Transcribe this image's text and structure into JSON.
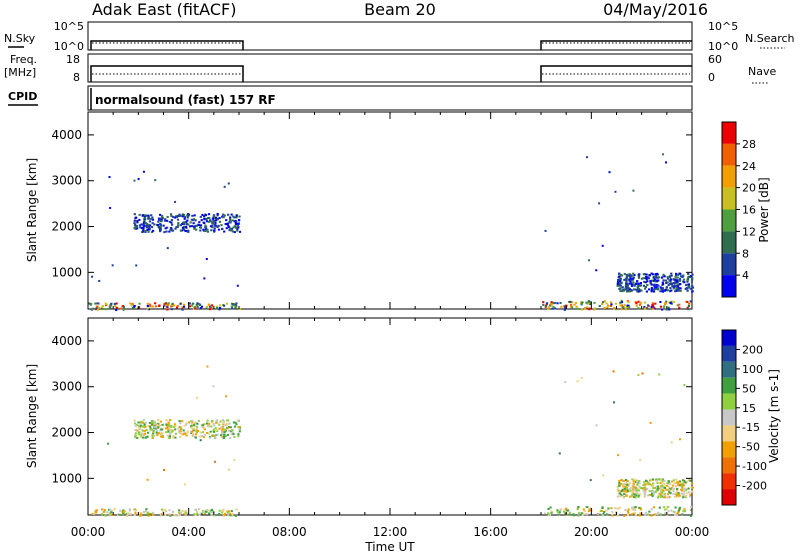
{
  "header": {
    "station": "Adak East (fitACF)",
    "beam": "Beam 20",
    "date": "04/May/2016"
  },
  "labels": {
    "nsky": "N.Sky",
    "nsearch": "N.Search",
    "freq": "Freq.",
    "freq_unit": "[MHz]",
    "nave": "Nave",
    "cpid": "CPID",
    "cpid_value": "normalsound (fast) 157 RF"
  },
  "strip_ticks": {
    "nsky_left": [
      "10^5",
      "10^0"
    ],
    "nsearch_right": [
      "10^5",
      "10^0"
    ],
    "freq_left": [
      "18",
      "8"
    ],
    "nave_right": [
      "60",
      "0"
    ]
  },
  "colors": {
    "power": [
      "#0000ee",
      "#1f3f9f",
      "#2f6f4f",
      "#4f9f3f",
      "#c8c020",
      "#f0a000",
      "#f06000",
      "#ee0000"
    ],
    "velocity": [
      "#e00000",
      "#f03000",
      "#f07000",
      "#f0a000",
      "#f0d080",
      "#c8c8c8",
      "#90d040",
      "#40a040",
      "#2f6f7f",
      "#1f3f9f",
      "#0000d0"
    ]
  },
  "chart_data": [
    {
      "type": "heatmap",
      "quantity": "Power",
      "ylabel": "Slant Range [km]",
      "colorbar_label": "Power [dB]",
      "colorbar_ticks": [
        "28",
        "24",
        "20",
        "16",
        "12",
        "8",
        "4"
      ],
      "xlim": [
        0,
        24
      ],
      "ylim": [
        200,
        4500
      ],
      "yticks": [
        1000,
        2000,
        3000,
        4000
      ],
      "xticks": [
        "00:00",
        "04:00",
        "08:00",
        "12:00",
        "16:00",
        "20:00",
        "00:00"
      ],
      "xlabel": "Time UT",
      "regions": [
        {
          "t0": 1.8,
          "t1": 6.0,
          "r0": 1900,
          "r1": 2300,
          "desc": "scatter band"
        },
        {
          "t0": 21.0,
          "t1": 24.0,
          "r0": 600,
          "r1": 1000,
          "desc": "scatter band"
        },
        {
          "t0": 0.0,
          "t1": 6.0,
          "r0": 200,
          "r1": 350,
          "desc": "ground band"
        },
        {
          "t0": 18.0,
          "t1": 24.0,
          "r0": 200,
          "r1": 400,
          "desc": "ground band"
        }
      ]
    },
    {
      "type": "heatmap",
      "quantity": "Velocity",
      "ylabel": "Slant Range [km]",
      "colorbar_label": "Velocity [m s-1]",
      "colorbar_ticks": [
        "200",
        "100",
        "50",
        "15",
        "-15",
        "-50",
        "-100",
        "-200"
      ],
      "xlim": [
        0,
        24
      ],
      "ylim": [
        200,
        4500
      ],
      "yticks": [
        1000,
        2000,
        3000,
        4000
      ],
      "xticks": [
        "00:00",
        "04:00",
        "08:00",
        "12:00",
        "16:00",
        "20:00",
        "00:00"
      ],
      "xlabel": "Time UT"
    }
  ]
}
